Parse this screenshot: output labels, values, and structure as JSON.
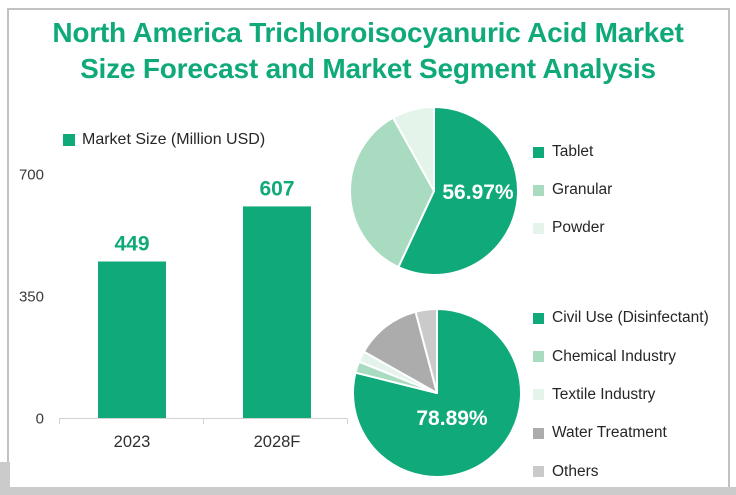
{
  "panel": {
    "title_line1": "North America Trichloroisocyanuric Acid Market",
    "title_line2": "Size Forecast and Market Segment Analysis"
  },
  "colors": {
    "accent_green": "#10A97A",
    "light_green": "#A8DBC0",
    "pale_green": "#E4F4EA",
    "gray": "#ACACAC",
    "light_gray": "#CACACA",
    "border": "#C2C2C2",
    "bottom_bar": "#CBCBCB",
    "axis_line": "#D2D2D2",
    "text_dark": "#262626",
    "percent_label": "#FFFFFF"
  },
  "chart_data": [
    {
      "type": "bar",
      "name": "market-size-forecast",
      "legend": "Market Size (Million USD)",
      "legend_position": "top-left",
      "categories": [
        "2023",
        "2028F"
      ],
      "values": [
        449,
        607
      ],
      "value_labels": [
        "449",
        "607"
      ],
      "ylim": [
        0,
        700
      ],
      "yticks": [
        0,
        350,
        700
      ],
      "grid": false,
      "bar_color": "#10A97A"
    },
    {
      "type": "pie",
      "name": "market-by-product",
      "center_label": "56.97%",
      "legend_position": "right",
      "series": [
        {
          "name": "Tablet",
          "value": 56.97,
          "color": "#10A97A"
        },
        {
          "name": "Granular",
          "value": 34.92,
          "color": "#A8DBC0"
        },
        {
          "name": "Powder",
          "value": 8.11,
          "color": "#E4F4EA"
        }
      ]
    },
    {
      "type": "pie",
      "name": "market-by-application",
      "center_label": "78.89%",
      "legend_position": "right",
      "series": [
        {
          "name": "Civil Use (Disinfectant)",
          "value": 78.89,
          "color": "#10A97A"
        },
        {
          "name": "Chemical Industry",
          "value": 2.2,
          "color": "#A8DBC0"
        },
        {
          "name": "Textile Industry",
          "value": 2.1,
          "color": "#E4F4EA"
        },
        {
          "name": "Water Treatment",
          "value": 12.7,
          "color": "#ACACAC"
        },
        {
          "name": "Others",
          "value": 4.11,
          "color": "#CACACA"
        }
      ]
    }
  ]
}
